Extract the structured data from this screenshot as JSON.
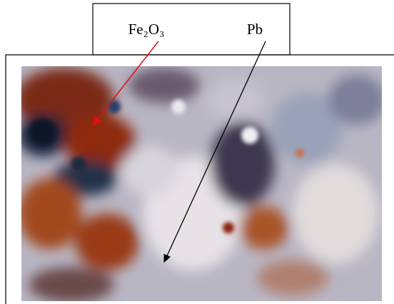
{
  "labels": {
    "fe2o3": "Fe₂O₃",
    "pb": "Pb"
  }
}
